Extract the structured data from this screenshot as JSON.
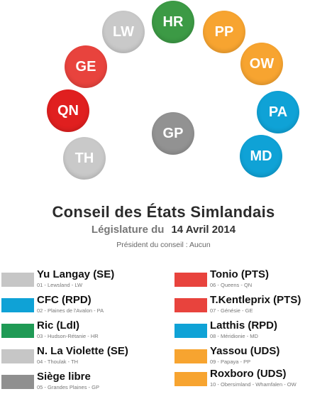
{
  "seats": [
    {
      "label": "HR",
      "color": "#3c9a45"
    },
    {
      "label": "LW",
      "color": "#c9c9c9"
    },
    {
      "label": "PP",
      "color": "#f7a430"
    },
    {
      "label": "GE",
      "color": "#e8433d"
    },
    {
      "label": "OW",
      "color": "#f7a430"
    },
    {
      "label": "QN",
      "color": "#e01f1f"
    },
    {
      "label": "PA",
      "color": "#0fa2d6"
    },
    {
      "label": "GP",
      "color": "#929292"
    },
    {
      "label": "TH",
      "color": "#c9c9c9"
    },
    {
      "label": "MD",
      "color": "#0fa2d6"
    }
  ],
  "header": {
    "title": "Conseil des États Simlandais",
    "subtitle_lead": "Législature du",
    "subtitle_date": "14 Avril 2014",
    "president": "Président du conseil : Aucun"
  },
  "members": [
    {
      "name": "Yu Langay (SE)",
      "sub": "01 - Lewsland - LW",
      "color": "#c6c6c6"
    },
    {
      "name": "CFC (RPD)",
      "sub": "02 - Plaines de l'Avalon - PA",
      "color": "#0fa2d6"
    },
    {
      "name": "Ric (LdI)",
      "sub": "03 - Hudson-Rétanie - HR",
      "color": "#1f9a55"
    },
    {
      "name": "N. La Violette (SE)",
      "sub": "04 - Thoulak - TH",
      "color": "#c6c6c6"
    },
    {
      "name": "Siège libre",
      "sub": "05 - Grandes Plaines - GP",
      "color": "#8f8f8f"
    },
    {
      "name": "Tonio (PTS)",
      "sub": "06 - Queens - QN",
      "color": "#e8433d"
    },
    {
      "name": "T.Kentleprix (PTS)",
      "sub": "07 - Génésie - GE",
      "color": "#e8433d"
    },
    {
      "name": "Latthis (RPD)",
      "sub": "08 - Méridionie - MD",
      "color": "#0fa2d6"
    },
    {
      "name": "Yassou (UDS)",
      "sub": "09 - Papaya - PP",
      "color": "#f7a430"
    },
    {
      "name": "Roxboro (UDS)",
      "sub": "10 - Obersimland - Whamfalen - OW",
      "color": "#f7a430"
    }
  ]
}
